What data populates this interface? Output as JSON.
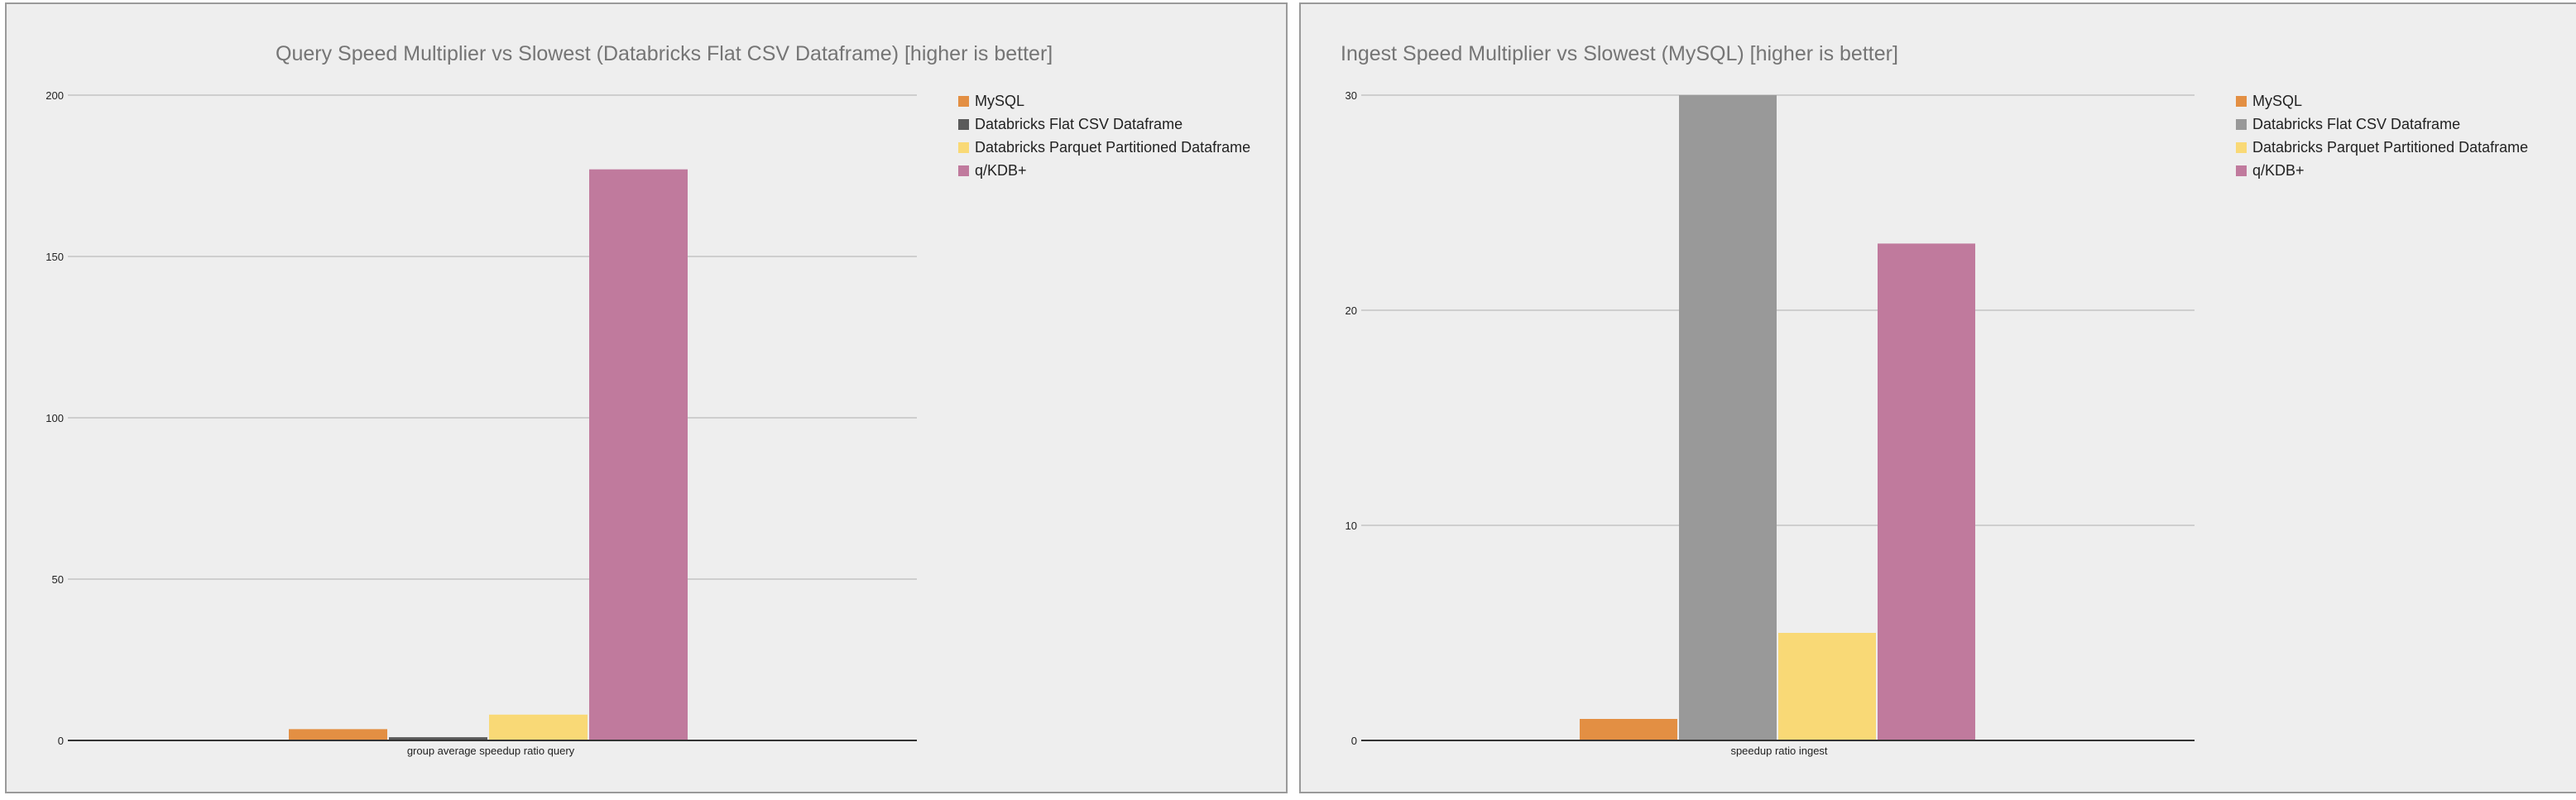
{
  "chart_data": [
    {
      "type": "bar",
      "title": "Query Speed Multiplier vs Slowest (Databricks Flat CSV Dataframe) [higher is better]",
      "categories": [
        "group average speedup ratio query"
      ],
      "series": [
        {
          "name": "MySQL",
          "color": "#e38f43",
          "values": [
            3.5
          ]
        },
        {
          "name": "Databricks Flat CSV Dataframe",
          "color": "#5a5a5a",
          "values": [
            1
          ]
        },
        {
          "name": "Databricks Parquet Partitioned Dataframe",
          "color": "#f9d976",
          "values": [
            8
          ]
        },
        {
          "name": "q/KDB+",
          "color": "#c07a9d",
          "values": [
            177
          ]
        }
      ],
      "ylim": [
        0,
        200
      ],
      "yticks": [
        0,
        50,
        100,
        150,
        200
      ],
      "xlabel": "",
      "ylabel": "",
      "grid": true,
      "legend": "right"
    },
    {
      "type": "bar",
      "title": "Ingest Speed Multiplier vs Slowest (MySQL) [higher is better]",
      "categories": [
        "speedup ratio ingest"
      ],
      "series": [
        {
          "name": "MySQL",
          "color": "#e38f43",
          "values": [
            1
          ]
        },
        {
          "name": "Databricks Flat CSV Dataframe",
          "color": "#999999",
          "values": [
            30
          ]
        },
        {
          "name": "Databricks Parquet Partitioned Dataframe",
          "color": "#f9d976",
          "values": [
            5
          ]
        },
        {
          "name": "q/KDB+",
          "color": "#c07a9d",
          "values": [
            23.1
          ]
        }
      ],
      "ylim": [
        0,
        30
      ],
      "yticks": [
        0,
        10,
        20,
        30
      ],
      "xlabel": "",
      "ylabel": "",
      "grid": true,
      "legend": "right"
    }
  ]
}
